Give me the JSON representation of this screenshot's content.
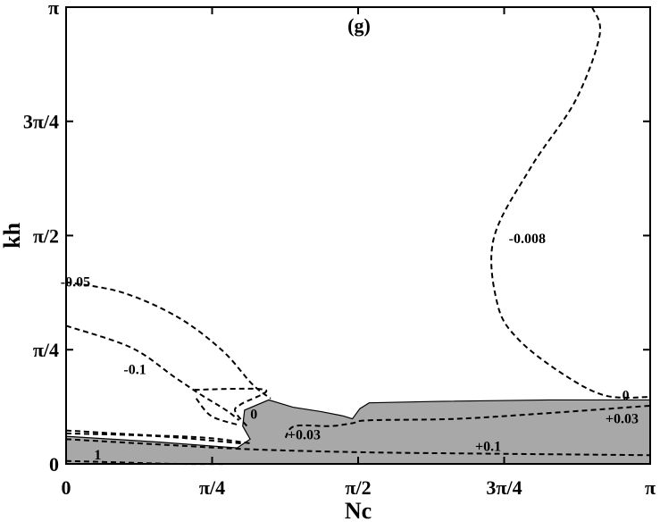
{
  "chart_data": {
    "type": "contour",
    "panel_label": "(g)",
    "xlabel": "Nc",
    "ylabel": "kh",
    "xlim": [
      0,
      3.14159
    ],
    "ylim": [
      0,
      3.14159
    ],
    "x_ticks": [
      {
        "value": 0,
        "label": "0"
      },
      {
        "value": 0.7854,
        "label": "π/4"
      },
      {
        "value": 1.5708,
        "label": "π/2"
      },
      {
        "value": 2.3562,
        "label": "3π/4"
      },
      {
        "value": 3.14159,
        "label": "π"
      }
    ],
    "y_ticks": [
      {
        "value": 0,
        "label": "0"
      },
      {
        "value": 0.7854,
        "label": "π/4"
      },
      {
        "value": 1.5708,
        "label": "π/2"
      },
      {
        "value": 2.3562,
        "label": "3π/4"
      },
      {
        "value": 3.14159,
        "label": "π"
      }
    ],
    "shaded_region_color": "#a8a8a8",
    "contour_labels": [
      {
        "text": "-0.008",
        "x": 2.48,
        "y": 1.55
      },
      {
        "text": "-0.05",
        "x": 0.05,
        "y": 1.25
      },
      {
        "text": "-0.1",
        "x": 0.37,
        "y": 0.65
      },
      {
        "text": "0",
        "x": 1.01,
        "y": 0.34
      },
      {
        "text": "+0.03",
        "x": 1.28,
        "y": 0.2
      },
      {
        "text": "0",
        "x": 3.01,
        "y": 0.47
      },
      {
        "text": "+0.03",
        "x": 2.99,
        "y": 0.31
      },
      {
        "text": "+0.1",
        "x": 2.27,
        "y": 0.12
      },
      {
        "text": "1",
        "x": 0.17,
        "y": 0.06
      }
    ],
    "shaded_boundary": [
      [
        0,
        0
      ],
      [
        0,
        0.19
      ],
      [
        0.5,
        0.15
      ],
      [
        0.92,
        0.11
      ],
      [
        0.99,
        0.17
      ],
      [
        0.95,
        0.26
      ],
      [
        0.96,
        0.37
      ],
      [
        1.09,
        0.44
      ],
      [
        1.22,
        0.39
      ],
      [
        1.37,
        0.36
      ],
      [
        1.49,
        0.33
      ],
      [
        1.54,
        0.31
      ],
      [
        1.58,
        0.38
      ],
      [
        1.63,
        0.42
      ],
      [
        2.0,
        0.43
      ],
      [
        2.6,
        0.44
      ],
      [
        3.14,
        0.44
      ],
      [
        3.14,
        0
      ]
    ],
    "contours": [
      {
        "label": "-0.008",
        "points": [
          [
            2.83,
            3.14
          ],
          [
            2.87,
            2.95
          ],
          [
            2.74,
            2.5
          ],
          [
            2.5,
            2.04
          ],
          [
            2.3,
            1.55
          ],
          [
            2.32,
            1.1
          ],
          [
            2.43,
            0.86
          ],
          [
            2.67,
            0.62
          ],
          [
            2.9,
            0.47
          ],
          [
            3.14,
            0.46
          ]
        ]
      },
      {
        "label": "-0.05",
        "points": [
          [
            0,
            1.25
          ],
          [
            0.3,
            1.18
          ],
          [
            0.6,
            1.01
          ],
          [
            0.84,
            0.78
          ],
          [
            1.0,
            0.55
          ],
          [
            1.1,
            0.45
          ]
        ]
      },
      {
        "label": "-0.1",
        "points": [
          [
            0,
            0.95
          ],
          [
            0.35,
            0.8
          ],
          [
            0.58,
            0.6
          ],
          [
            0.72,
            0.48
          ],
          [
            0.86,
            0.37
          ],
          [
            0.93,
            0.3
          ]
        ]
      },
      {
        "label": "inner-left",
        "points": [
          [
            0.69,
            0.51
          ],
          [
            1.07,
            0.51
          ],
          [
            0.94,
            0.41
          ],
          [
            0.91,
            0.36
          ],
          [
            0.98,
            0.25
          ]
        ]
      },
      {
        "label": "inner-left-2",
        "points": [
          [
            0.7,
            0.45
          ],
          [
            0.78,
            0.33
          ],
          [
            0.92,
            0.27
          ]
        ]
      },
      {
        "label": "+0.03",
        "points": [
          [
            1.18,
            0.18
          ],
          [
            1.23,
            0.26
          ],
          [
            1.42,
            0.26
          ],
          [
            1.54,
            0.28
          ],
          [
            1.63,
            0.3
          ],
          [
            2.1,
            0.31
          ],
          [
            2.6,
            0.35
          ],
          [
            3.14,
            0.4
          ]
        ]
      },
      {
        "label": "+0.03-left",
        "points": [
          [
            0,
            0.23
          ],
          [
            0.4,
            0.2
          ],
          [
            0.75,
            0.18
          ],
          [
            1.0,
            0.14
          ]
        ]
      },
      {
        "label": "0-left",
        "points": [
          [
            0,
            0.21
          ],
          [
            0.5,
            0.19
          ],
          [
            0.95,
            0.14
          ]
        ]
      },
      {
        "label": "+0.1",
        "points": [
          [
            0,
            0.17
          ],
          [
            0.55,
            0.13
          ],
          [
            1.0,
            0.1
          ],
          [
            1.6,
            0.08
          ],
          [
            2.3,
            0.07
          ],
          [
            3.14,
            0.06
          ]
        ]
      },
      {
        "label": "1",
        "points": [
          [
            0,
            0.02
          ],
          [
            0.3,
            0.01
          ],
          [
            0.6,
            0.0
          ],
          [
            0.95,
            0.0
          ]
        ]
      }
    ]
  }
}
